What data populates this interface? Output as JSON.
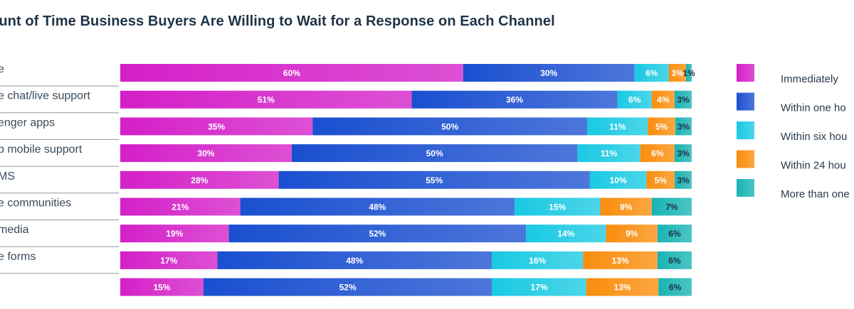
{
  "chart_data": {
    "type": "bar",
    "orientation": "horizontal",
    "stacked": true,
    "title": "ount of Time Business Buyers Are Willing to Wait for a Response on Each Channel",
    "categories": [
      "e",
      "e chat/live support",
      "enger apps",
      "p mobile support",
      "MS",
      "e communities",
      " media",
      "e forms",
      ""
    ],
    "series": [
      {
        "name": "Immediately",
        "color": "#d41fc8",
        "values": [
          60,
          51,
          35,
          30,
          28,
          21,
          19,
          17,
          15
        ]
      },
      {
        "name": "Within one ho",
        "color": "#1a4fd0",
        "values": [
          30,
          36,
          50,
          50,
          55,
          48,
          52,
          48,
          52
        ]
      },
      {
        "name": "Within six hou",
        "color": "#19c9e3",
        "values": [
          6,
          6,
          11,
          11,
          10,
          15,
          14,
          16,
          17
        ]
      },
      {
        "name": "Within 24 hou",
        "color": "#fa8d0c",
        "values": [
          3,
          4,
          5,
          6,
          5,
          9,
          9,
          13,
          13
        ]
      },
      {
        "name": "More than one",
        "color": "#19b3b5",
        "values": [
          1,
          3,
          3,
          3,
          3,
          7,
          6,
          6,
          6
        ]
      }
    ],
    "data_labels": [
      [
        "60%",
        "30%",
        "6%",
        "3%",
        "1%"
      ],
      [
        "51%",
        "36%",
        "6%",
        "4%",
        "3%"
      ],
      [
        "35%",
        "50%",
        "11%",
        "5%",
        "3%"
      ],
      [
        "30%",
        "50%",
        "11%",
        "6%",
        "3%"
      ],
      [
        "28%",
        "55%",
        "10%",
        "5%",
        "3%"
      ],
      [
        "21%",
        "48%",
        "15%",
        "9%",
        "7%"
      ],
      [
        "19%",
        "52%",
        "14%",
        "9%",
        "6%"
      ],
      [
        "17%",
        "48%",
        "16%",
        "13%",
        "6%"
      ],
      [
        "15%",
        "52%",
        "17%",
        "13%",
        "6%"
      ]
    ],
    "legend_position": "right",
    "grid": false
  }
}
